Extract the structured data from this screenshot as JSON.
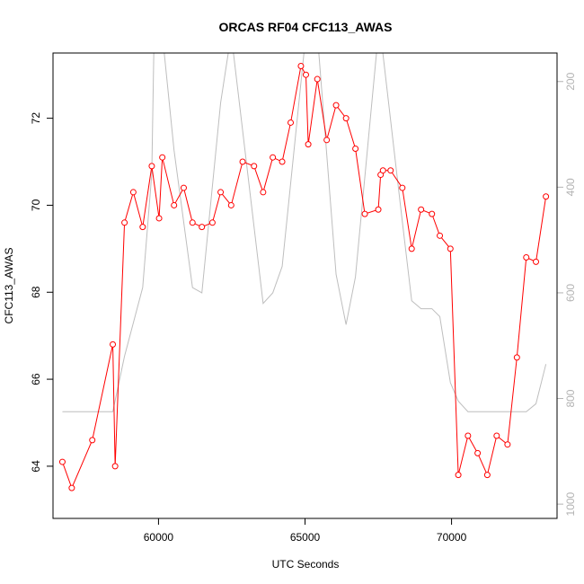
{
  "chart_data": {
    "type": "line",
    "title": "ORCAS RF04 CFC113_AWAS",
    "xlabel": "UTC Seconds",
    "ylabel": "CFC113_AWAS",
    "xlim": [
      56400,
      73600
    ],
    "ylim": [
      62.8,
      73.5
    ],
    "x_ticks": [
      60000,
      65000,
      70000
    ],
    "x_tick_labels": [
      "60000",
      "65000",
      "70000"
    ],
    "y_ticks": [
      64,
      66,
      68,
      70,
      72
    ],
    "y_tick_labels": [
      "64",
      "66",
      "68",
      "70",
      "72"
    ],
    "right_axis": {
      "inverted": true,
      "ylim": [
        1027,
        146
      ],
      "ticks": [
        200,
        400,
        600,
        800,
        1000
      ],
      "tick_labels": [
        "200",
        "400",
        "600",
        "800",
        "1000"
      ],
      "color": "#b3b3b3"
    },
    "grid": false,
    "legend": "none",
    "series": [
      {
        "color": "#ff0000",
        "markers": "open-circle",
        "axis": "left",
        "x": [
          56720,
          57040,
          57740,
          58440,
          58520,
          58840,
          59140,
          59460,
          59770,
          60020,
          60130,
          60530,
          60860,
          61160,
          61480,
          61840,
          62120,
          62480,
          62870,
          63260,
          63570,
          63900,
          64220,
          64510,
          64860,
          65030,
          65110,
          65420,
          65740,
          66060,
          66400,
          66720,
          67040,
          67500,
          67580,
          67660,
          67920,
          68320,
          68640,
          68960,
          69330,
          69600,
          69960,
          70230,
          70560,
          70890,
          71220,
          71540,
          71910,
          72230,
          72550,
          72880,
          73220
        ],
        "y": [
          64.1,
          63.5,
          64.6,
          66.8,
          64.0,
          69.6,
          70.3,
          69.5,
          70.9,
          69.7,
          71.1,
          70.0,
          70.4,
          69.6,
          69.5,
          69.6,
          70.3,
          70.0,
          71.0,
          70.9,
          70.3,
          71.1,
          71.0,
          71.9,
          73.2,
          73.0,
          71.4,
          72.9,
          71.5,
          72.3,
          72.0,
          71.3,
          69.8,
          69.9,
          70.7,
          70.8,
          70.8,
          70.4,
          69.0,
          69.9,
          69.8,
          69.3,
          69.0,
          63.8,
          64.7,
          64.3,
          63.8,
          64.7,
          64.5,
          66.5,
          68.8,
          68.7,
          70.2
        ]
      },
      {
        "color": "#bebebe",
        "markers": "none",
        "axis": "right",
        "x": [
          56720,
          58440,
          58840,
          59460,
          59770,
          59850,
          60130,
          60530,
          61160,
          61480,
          62120,
          62480,
          63570,
          63900,
          64220,
          65030,
          65420,
          66060,
          66400,
          66720,
          67500,
          67580,
          68320,
          68640,
          68960,
          69330,
          69600,
          69960,
          70230,
          70560,
          72550,
          72880,
          73220
        ],
        "y": [
          825,
          825,
          720,
          590,
          375,
          110,
          110,
          330,
          590,
          600,
          240,
          110,
          620,
          600,
          550,
          110,
          110,
          565,
          660,
          570,
          110,
          110,
          465,
          615,
          630,
          630,
          645,
          770,
          805,
          825,
          825,
          810,
          735
        ]
      }
    ]
  }
}
